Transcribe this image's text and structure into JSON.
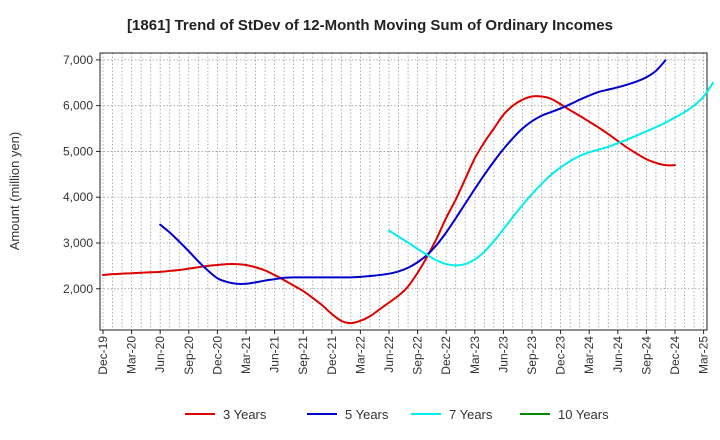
{
  "chart_data": {
    "type": "line",
    "title": "[1861]  Trend of StDev of 12-Month Moving Sum of Ordinary Incomes",
    "xlabel": "",
    "ylabel": "Amount (million yen)",
    "ylim": [
      1100,
      7150
    ],
    "yticks": [
      2000,
      3000,
      4000,
      5000,
      6000,
      7000
    ],
    "ytick_labels": [
      "2,000",
      "3,000",
      "4,000",
      "5,000",
      "6,000",
      "7,000"
    ],
    "x_categories": [
      "Dec-19",
      "Mar-20",
      "Jun-20",
      "Sep-20",
      "Dec-20",
      "Mar-21",
      "Jun-21",
      "Sep-21",
      "Dec-21",
      "Mar-22",
      "Jun-22",
      "Sep-22",
      "Dec-22",
      "Mar-23",
      "Jun-23",
      "Sep-23",
      "Dec-23",
      "Mar-24",
      "Jun-24",
      "Sep-24",
      "Dec-24",
      "Mar-25"
    ],
    "grid": true,
    "legend_position": "bottom",
    "series": [
      {
        "name": "3 Years",
        "color": "#dd0000",
        "start_index": 0,
        "values": [
          2300,
          2320,
          2330,
          2340,
          2350,
          2360,
          2370,
          2390,
          2410,
          2440,
          2470,
          2500,
          2520,
          2540,
          2540,
          2520,
          2470,
          2400,
          2300,
          2190,
          2070,
          1950,
          1800,
          1640,
          1450,
          1300,
          1250,
          1300,
          1400,
          1550,
          1700,
          1850,
          2050,
          2350,
          2700,
          3100,
          3550,
          3950,
          4400,
          4850,
          5200,
          5500,
          5800,
          6000,
          6130,
          6200,
          6200,
          6150,
          6030,
          5900,
          5780,
          5650,
          5520,
          5380,
          5230,
          5080,
          4950,
          4830,
          4750,
          4700,
          4700
        ]
      },
      {
        "name": "5 Years",
        "color": "#0000cc",
        "start_index": 6,
        "values": [
          3400,
          3230,
          3030,
          2820,
          2600,
          2400,
          2230,
          2150,
          2110,
          2110,
          2140,
          2180,
          2210,
          2240,
          2250,
          2250,
          2250,
          2250,
          2250,
          2250,
          2250,
          2260,
          2280,
          2300,
          2330,
          2380,
          2460,
          2580,
          2740,
          2960,
          3230,
          3540,
          3860,
          4180,
          4490,
          4780,
          5050,
          5290,
          5500,
          5660,
          5780,
          5860,
          5940,
          6030,
          6130,
          6220,
          6300,
          6350,
          6400,
          6460,
          6530,
          6620,
          6760,
          6990
        ]
      },
      {
        "name": "7 Years",
        "color": "#00eeee",
        "start_index": 30,
        "values": [
          3270,
          3140,
          3010,
          2870,
          2740,
          2620,
          2540,
          2510,
          2540,
          2640,
          2810,
          3040,
          3300,
          3570,
          3830,
          4070,
          4290,
          4490,
          4650,
          4790,
          4900,
          4980,
          5040,
          5100,
          5180,
          5260,
          5350,
          5440,
          5530,
          5630,
          5740,
          5860,
          6000,
          6200,
          6500
        ]
      },
      {
        "name": "10 Years",
        "color": "#008800",
        "start_index": 0,
        "values": []
      }
    ]
  }
}
